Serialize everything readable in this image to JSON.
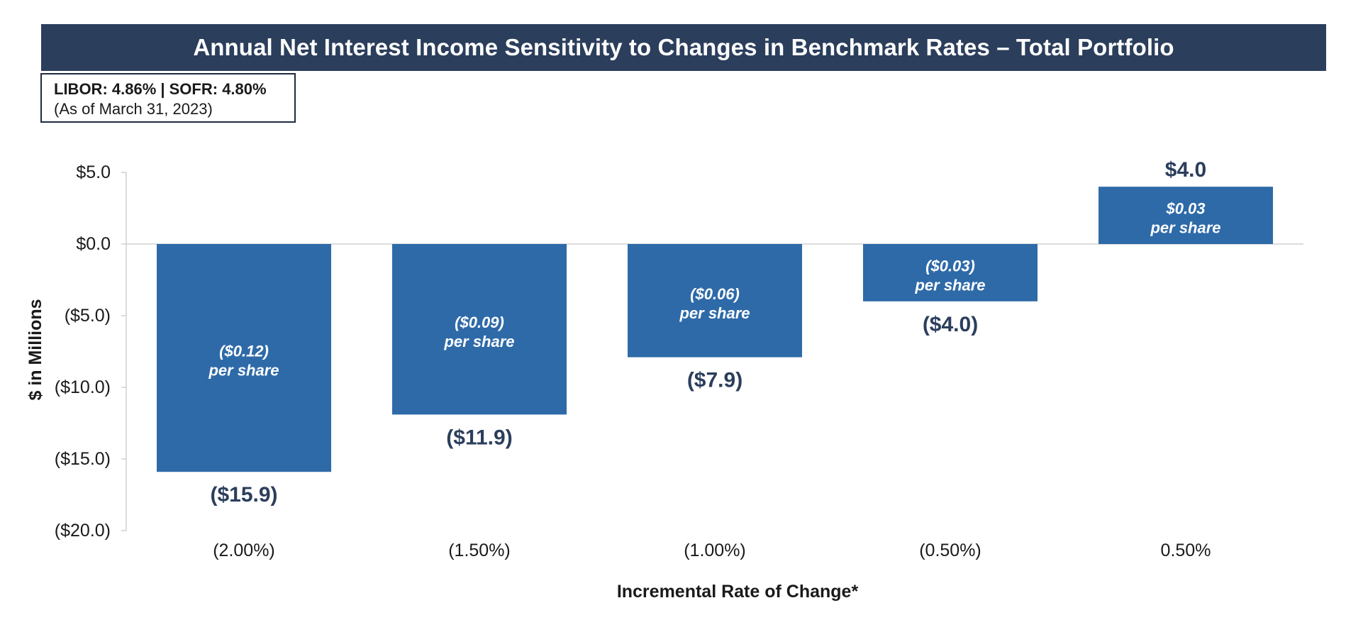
{
  "header": {
    "title": "Annual Net Interest Income Sensitivity to Changes in Benchmark Rates – Total Portfolio"
  },
  "rates_box": {
    "line1": "LIBOR: 4.86% | SOFR: 4.80%",
    "line2": "(As of March 31, 2023)"
  },
  "colors": {
    "bar": "#2e6aa8",
    "title_bg": "#2b3e5c",
    "value_label": "#2b3e5c",
    "axis_text": "#1a1a1a"
  },
  "chart_data": {
    "type": "bar",
    "title": "Annual Net Interest Income Sensitivity to Changes in Benchmark Rates – Total Portfolio",
    "xlabel": "Incremental Rate of Change*",
    "ylabel": "$ in Millions",
    "ylim": [
      -20,
      5
    ],
    "yticks": [
      5,
      0,
      -5,
      -10,
      -15,
      -20
    ],
    "ytick_labels": [
      "$5.0",
      "$0.0",
      "($5.0)",
      "($10.0)",
      "($15.0)",
      "($20.0)"
    ],
    "categories": [
      "(2.00%)",
      "(1.50%)",
      "(1.00%)",
      "(0.50%)",
      "0.50%"
    ],
    "values": [
      -15.9,
      -11.9,
      -7.9,
      -4.0,
      4.0
    ],
    "value_labels": [
      "($15.9)",
      "($11.9)",
      "($7.9)",
      "($4.0)",
      "$4.0"
    ],
    "per_share_values": [
      "($0.12)",
      "($0.09)",
      "($0.06)",
      "($0.03)",
      "$0.03"
    ],
    "per_share_suffix": "per share",
    "grid": false,
    "legend": "none"
  }
}
